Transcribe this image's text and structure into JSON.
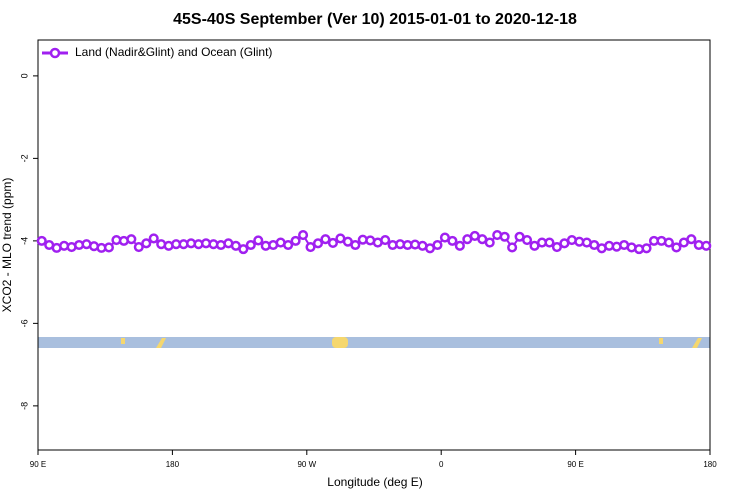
{
  "chart_data": {
    "type": "line",
    "title": "45S-40S September (Ver 10)   2015-01-01 to 2020-12-18",
    "x_label": "Longitude (deg E)",
    "y_label": "XCO2 - MLO trend (ppm)",
    "xlim": [
      90,
      540
    ],
    "xticks": [
      {
        "value": 90,
        "label": "90 E"
      },
      {
        "value": 180,
        "label": "180"
      },
      {
        "value": 270,
        "label": "90 W"
      },
      {
        "value": 360,
        "label": "0"
      },
      {
        "value": 450,
        "label": "90 E"
      },
      {
        "value": 540,
        "label": "180"
      }
    ],
    "ylim": [
      -9.07,
      0.87
    ],
    "yticks": [
      0,
      -2,
      -4,
      -6,
      -8
    ],
    "legend": "upper left",
    "x": [
      92.5,
      97.5,
      102.5,
      107.5,
      112.5,
      117.5,
      122.5,
      127.5,
      132.5,
      137.5,
      142.5,
      147.5,
      152.5,
      157.5,
      162.5,
      167.5,
      172.5,
      177.5,
      182.5,
      187.5,
      192.5,
      197.5,
      202.5,
      207.5,
      212.5,
      217.5,
      222.5,
      227.5,
      232.5,
      237.5,
      242.5,
      247.5,
      252.5,
      257.5,
      262.5,
      267.5,
      272.5,
      277.5,
      282.5,
      287.5,
      292.5,
      297.5,
      302.5,
      307.5,
      312.5,
      317.5,
      322.5,
      327.5,
      332.5,
      337.5,
      342.5,
      347.5,
      352.5,
      357.5,
      362.5,
      367.5,
      372.5,
      377.5,
      382.5,
      387.5,
      392.5,
      397.5,
      402.5,
      407.5,
      412.5,
      417.5,
      422.5,
      427.5,
      432.5,
      437.5,
      442.5,
      447.5,
      452.5,
      457.5,
      462.5,
      467.5,
      472.5,
      477.5,
      482.5,
      487.5,
      492.5,
      497.5,
      502.5,
      507.5,
      512.5,
      517.5,
      522.5,
      527.5,
      532.5,
      537.5
    ],
    "series": [
      {
        "name": "Land (Nadir&Glint) and Ocean (Glint)",
        "color": "#a020f0",
        "values": [
          -4.0,
          -4.1,
          -4.17,
          -4.12,
          -4.15,
          -4.1,
          -4.08,
          -4.13,
          -4.17,
          -4.16,
          -3.98,
          -4.0,
          -3.96,
          -4.15,
          -4.06,
          -3.94,
          -4.08,
          -4.12,
          -4.08,
          -4.08,
          -4.06,
          -4.08,
          -4.06,
          -4.08,
          -4.1,
          -4.06,
          -4.12,
          -4.2,
          -4.1,
          -3.99,
          -4.12,
          -4.1,
          -4.04,
          -4.1,
          -4.0,
          -3.86,
          -4.15,
          -4.06,
          -3.96,
          -4.05,
          -3.94,
          -4.02,
          -4.1,
          -3.97,
          -3.99,
          -4.04,
          -3.98,
          -4.1,
          -4.08,
          -4.1,
          -4.09,
          -4.12,
          -4.18,
          -4.1,
          -3.92,
          -4.0,
          -4.12,
          -3.96,
          -3.88,
          -3.96,
          -4.04,
          -3.86,
          -3.9,
          -4.16,
          -3.9,
          -3.98,
          -4.12,
          -4.04,
          -4.04,
          -4.15,
          -4.06,
          -3.98,
          -4.02,
          -4.04,
          -4.1,
          -4.18,
          -4.12,
          -4.14,
          -4.1,
          -4.16,
          -4.2,
          -4.18,
          -4.0,
          -4.0,
          -4.04,
          -4.16,
          -4.04,
          -3.96,
          -4.1,
          -4.12
        ]
      }
    ]
  }
}
